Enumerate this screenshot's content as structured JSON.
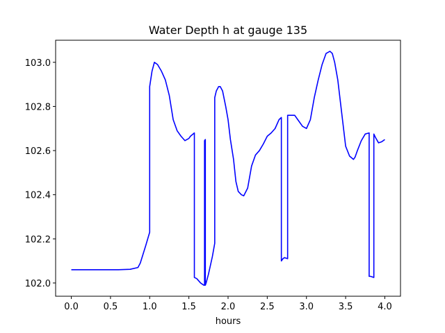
{
  "chart_data": {
    "type": "line",
    "title": "Water Depth h at gauge 135",
    "xlabel": "hours",
    "ylabel": "",
    "xlim": [
      -0.2,
      4.2
    ],
    "ylim": [
      101.94,
      103.1
    ],
    "xticks": [
      0.0,
      0.5,
      1.0,
      1.5,
      2.0,
      2.5,
      3.0,
      3.5,
      4.0
    ],
    "xtick_labels": [
      "0.0",
      "0.5",
      "1.0",
      "1.5",
      "2.0",
      "2.5",
      "3.0",
      "3.5",
      "4.0"
    ],
    "yticks": [
      102.0,
      102.2,
      102.4,
      102.6,
      102.8,
      103.0
    ],
    "ytick_labels": [
      "102.0",
      "102.2",
      "102.4",
      "102.6",
      "102.8",
      "103.0"
    ],
    "grid": false,
    "series": [
      {
        "color": "#0000ff",
        "x": [
          0.0,
          0.3,
          0.6,
          0.75,
          0.85,
          0.88,
          0.95,
          1.0,
          1.0,
          1.03,
          1.06,
          1.1,
          1.15,
          1.2,
          1.25,
          1.3,
          1.35,
          1.4,
          1.45,
          1.5,
          1.52,
          1.57,
          1.57,
          1.6,
          1.65,
          1.69,
          1.7,
          1.7,
          1.71,
          1.71,
          1.72,
          1.75,
          1.8,
          1.83,
          1.83,
          1.85,
          1.88,
          1.9,
          1.93,
          1.97,
          2.0,
          2.03,
          2.07,
          2.1,
          2.13,
          2.17,
          2.2,
          2.25,
          2.3,
          2.35,
          2.4,
          2.45,
          2.5,
          2.55,
          2.6,
          2.65,
          2.68,
          2.68,
          2.7,
          2.72,
          2.76,
          2.76,
          2.78,
          2.85,
          2.9,
          2.95,
          3.0,
          3.05,
          3.1,
          3.15,
          3.2,
          3.25,
          3.3,
          3.33,
          3.36,
          3.4,
          3.45,
          3.5,
          3.55,
          3.6,
          3.62,
          3.65,
          3.7,
          3.75,
          3.8,
          3.8,
          3.82,
          3.86,
          3.86,
          3.88,
          3.92,
          3.96,
          4.0
        ],
        "y": [
          102.06,
          102.06,
          102.06,
          102.062,
          102.07,
          102.09,
          102.17,
          102.23,
          102.89,
          102.96,
          103.0,
          102.99,
          102.96,
          102.92,
          102.85,
          102.74,
          102.69,
          102.665,
          102.645,
          102.655,
          102.665,
          102.68,
          102.025,
          102.02,
          102.0,
          101.99,
          101.99,
          102.645,
          102.65,
          101.99,
          102.0,
          102.04,
          102.12,
          102.18,
          102.84,
          102.87,
          102.89,
          102.89,
          102.87,
          102.8,
          102.74,
          102.65,
          102.56,
          102.46,
          102.415,
          102.4,
          102.395,
          102.43,
          102.53,
          102.58,
          102.6,
          102.63,
          102.665,
          102.68,
          102.7,
          102.74,
          102.75,
          102.1,
          102.11,
          102.115,
          102.11,
          102.76,
          102.76,
          102.76,
          102.735,
          102.71,
          102.7,
          102.74,
          102.84,
          102.92,
          102.99,
          103.04,
          103.05,
          103.04,
          103.0,
          102.92,
          102.77,
          102.62,
          102.575,
          102.56,
          102.57,
          102.6,
          102.645,
          102.675,
          102.68,
          102.03,
          102.03,
          102.025,
          102.675,
          102.66,
          102.635,
          102.64,
          102.65
        ]
      }
    ]
  }
}
